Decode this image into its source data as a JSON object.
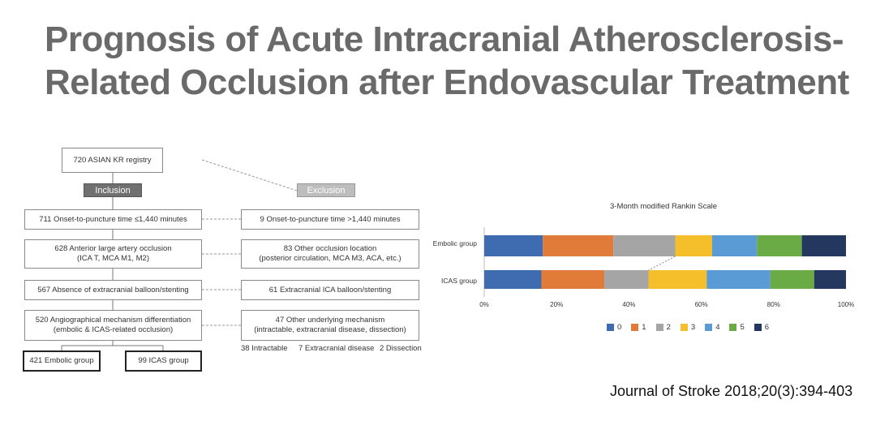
{
  "title": {
    "line1": "Prognosis of Acute Intracranial Atherosclerosis-",
    "line2": "Related Occlusion after Endovascular Treatment"
  },
  "flowchart": {
    "registry": "720 ASIAN KR registry",
    "inclusion_label": "Inclusion",
    "exclusion_label": "Exclusion",
    "inclusion": [
      {
        "line1": "711 Onset-to-puncture time ≤1,440 minutes",
        "line2": ""
      },
      {
        "line1": "628 Anterior large artery occlusion",
        "line2": "(ICA T, MCA M1, M2)"
      },
      {
        "line1": "567 Absence of extracranial balloon/stenting",
        "line2": ""
      },
      {
        "line1": "520 Angiographical mechanism differentiation",
        "line2": "(embolic & ICAS-related occlusion)"
      }
    ],
    "exclusion": [
      {
        "line1": "9 Onset-to-puncture time >1,440 minutes",
        "line2": ""
      },
      {
        "line1": "83 Other occlusion location",
        "line2": "(posterior circulation, MCA M3, ACA, etc.)"
      },
      {
        "line1": "61 Extracranial ICA balloon/stenting",
        "line2": ""
      },
      {
        "line1": "47 Other underlying mechanism",
        "line2": "(intractable, extracranial disease, dissection)"
      }
    ],
    "breakdown": [
      "38 Intractable",
      "7 Extracranial disease",
      "2 Dissection"
    ],
    "groups": [
      "421 Embolic group",
      "99 ICAS group"
    ]
  },
  "chart_data": {
    "type": "bar",
    "orientation": "horizontal-stacked-100",
    "title": "3-Month modified Rankin Scale",
    "categories": [
      "Embolic group",
      "ICAS group"
    ],
    "x_ticks": [
      "0%",
      "20%",
      "40%",
      "60%",
      "80%",
      "100%"
    ],
    "xlim": [
      0,
      100
    ],
    "series": [
      {
        "name": "0",
        "color": "#3f6cb0",
        "values": [
          16.2,
          15.8
        ]
      },
      {
        "name": "1",
        "color": "#e07b39",
        "values": [
          19.5,
          17.4
        ]
      },
      {
        "name": "2",
        "color": "#a5a5a5",
        "values": [
          17.1,
          12.2
        ]
      },
      {
        "name": "3",
        "color": "#f4bf2a",
        "values": [
          10.2,
          16.1
        ]
      },
      {
        "name": "4",
        "color": "#5b9bd5",
        "values": [
          12.4,
          17.6
        ]
      },
      {
        "name": "5",
        "color": "#6aab45",
        "values": [
          12.4,
          12.1
        ]
      },
      {
        "name": "6",
        "color": "#24385f",
        "values": [
          12.2,
          8.8
        ]
      }
    ],
    "connector_between": [
      "2",
      "3"
    ]
  },
  "citation": "Journal of Stroke 2018;20(3):394-403"
}
